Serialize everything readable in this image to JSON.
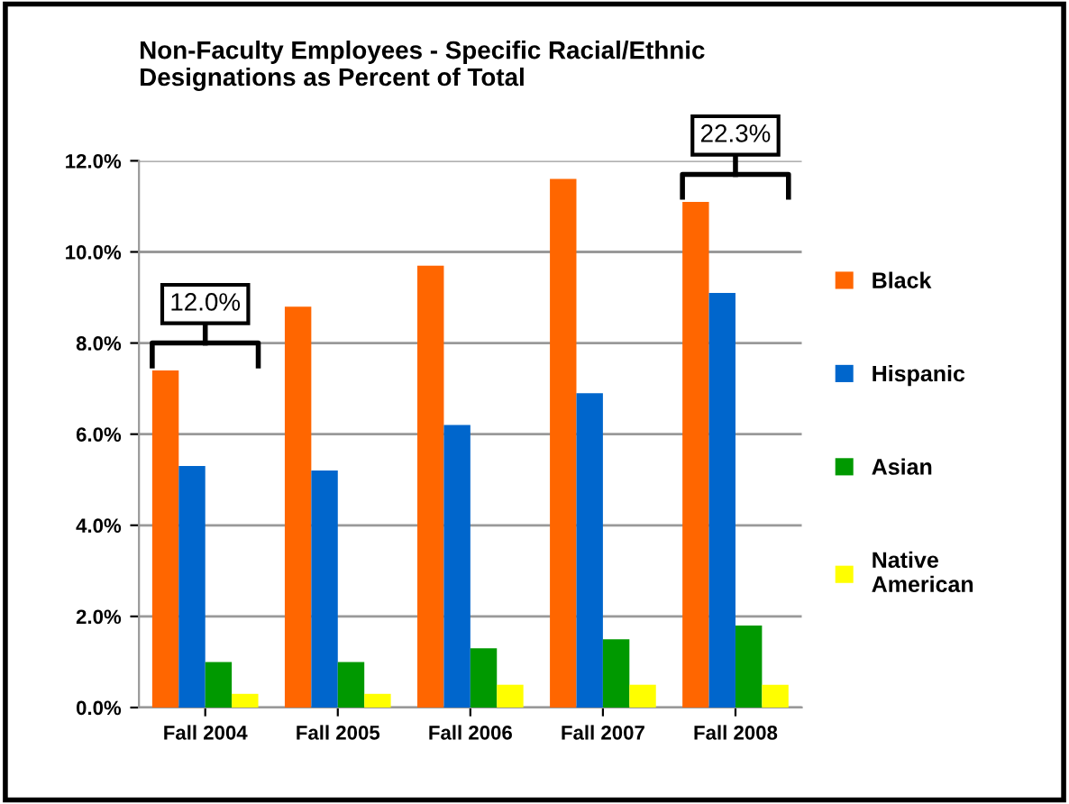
{
  "chart_data": {
    "type": "bar",
    "title": "Non-Faculty Employees - Specific Racial/Ethnic\nDesignations as Percent of Total",
    "categories": [
      "Fall 2004",
      "Fall 2005",
      "Fall 2006",
      "Fall 2007",
      "Fall 2008"
    ],
    "series": [
      {
        "name": "Black",
        "color": "#ff6600",
        "values": [
          7.4,
          8.8,
          9.7,
          11.6,
          11.1
        ]
      },
      {
        "name": "Hispanic",
        "color": "#0066cc",
        "values": [
          5.3,
          5.2,
          6.2,
          6.9,
          9.1
        ]
      },
      {
        "name": "Asian",
        "color": "#009900",
        "values": [
          1.0,
          1.0,
          1.3,
          1.5,
          1.8
        ]
      },
      {
        "name": "Native\nAmerican",
        "color": "#ffff00",
        "values": [
          0.3,
          0.3,
          0.5,
          0.5,
          0.5
        ]
      }
    ],
    "ylim": [
      0,
      12
    ],
    "yticks": [
      {
        "value": 0,
        "label": "0.0%"
      },
      {
        "value": 2,
        "label": "2.0%"
      },
      {
        "value": 4,
        "label": "4.0%"
      },
      {
        "value": 6,
        "label": "6.0%"
      },
      {
        "value": 8,
        "label": "8.0%"
      },
      {
        "value": 10,
        "label": "10.0%"
      },
      {
        "value": 12,
        "label": "12.0%"
      }
    ],
    "grid": "y",
    "legend": "right",
    "annotations": [
      "12.0%",
      "22.3%"
    ]
  }
}
